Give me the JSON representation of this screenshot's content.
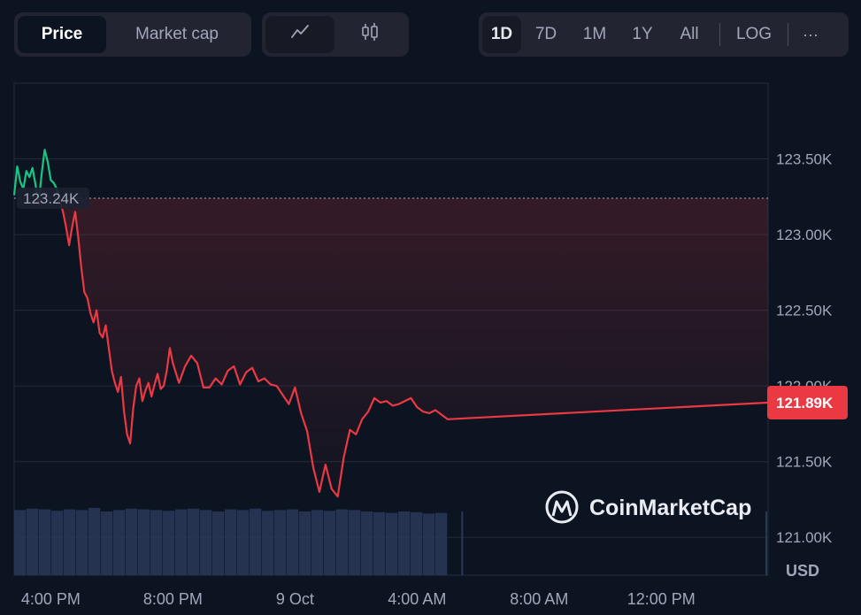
{
  "toolbar": {
    "tabs": [
      {
        "label": "Price",
        "active": true
      },
      {
        "label": "Market cap",
        "active": false
      }
    ],
    "chart_types": [
      {
        "icon": "line-chart-icon",
        "active": true
      },
      {
        "icon": "candlestick-icon",
        "active": false
      }
    ],
    "ranges": [
      {
        "label": "1D",
        "active": true
      },
      {
        "label": "7D",
        "active": false
      },
      {
        "label": "1M",
        "active": false
      },
      {
        "label": "1Y",
        "active": false
      },
      {
        "label": "All",
        "active": false
      }
    ],
    "log_label": "LOG",
    "more_label": "···"
  },
  "watermark": {
    "text": "CoinMarketCap"
  },
  "colors": {
    "background": "#0d1421",
    "up": "#16c784",
    "down": "#ea3943",
    "grid": "#222a3a",
    "volume": "#2a3858"
  },
  "chart_data": {
    "type": "line",
    "currency_label": "USD",
    "y_ticks": [
      "123.50K",
      "123.00K",
      "122.50K",
      "122.00K",
      "121.50K",
      "121.00K"
    ],
    "y_tick_values": [
      123500,
      123000,
      122500,
      122000,
      121500,
      121000
    ],
    "ylim": [
      120750,
      124000
    ],
    "x_ticks": [
      "4:00 PM",
      "8:00 PM",
      "9 Oct",
      "4:00 AM",
      "8:00 AM",
      "12:00 PM"
    ],
    "x_tick_hours": [
      0,
      4,
      8,
      12,
      16,
      20
    ],
    "xlim_hours": [
      -1.2,
      23.5
    ],
    "open_price_label": "123.24K",
    "open_price": 123240,
    "last_price_label": "121.89K",
    "last_price": 121890,
    "series": [
      {
        "x_hours": [
          -1.2,
          -1.1,
          -1.0,
          -0.9,
          -0.8,
          -0.7,
          -0.6,
          -0.5,
          -0.4,
          -0.3,
          -0.2,
          -0.1,
          0.0,
          0.1,
          0.2,
          0.3,
          0.4,
          0.5,
          0.6,
          0.7,
          0.8,
          0.9,
          1.0,
          1.1,
          1.2,
          1.3,
          1.4,
          1.5,
          1.6,
          1.7,
          1.8,
          1.9,
          2.0,
          2.1,
          2.2,
          2.3,
          2.4,
          2.5,
          2.6,
          2.7,
          2.8,
          2.9,
          3.0,
          3.1,
          3.2,
          3.3,
          3.4,
          3.5,
          3.6,
          3.7,
          3.8,
          3.9,
          4.0,
          4.2,
          4.4,
          4.6,
          4.8,
          5.0,
          5.2,
          5.4,
          5.6,
          5.8,
          6.0,
          6.2,
          6.4,
          6.6,
          6.8,
          7.0,
          7.2,
          7.4,
          7.6,
          7.8,
          8.0,
          8.2,
          8.4,
          8.6,
          8.8,
          9.0,
          9.2,
          9.4,
          9.6,
          9.8,
          10.0,
          10.2,
          10.4,
          10.6,
          10.8,
          11.0,
          11.2,
          11.4,
          11.6,
          11.8,
          12.0,
          12.2,
          12.4,
          12.6,
          12.8,
          13.0,
          23.5
        ],
        "values": [
          123260,
          123450,
          123350,
          123300,
          123420,
          123380,
          123440,
          123330,
          123200,
          123400,
          123560,
          123480,
          123360,
          123340,
          123300,
          123220,
          123150,
          123050,
          122930,
          123050,
          123150,
          122980,
          122780,
          122620,
          122580,
          122480,
          122420,
          122500,
          122350,
          122320,
          122400,
          122250,
          122100,
          122020,
          121960,
          122060,
          121830,
          121680,
          121620,
          121850,
          122000,
          122050,
          121900,
          121970,
          122020,
          121930,
          122010,
          122080,
          121980,
          122000,
          122100,
          122250,
          122150,
          122020,
          122130,
          122200,
          122150,
          121990,
          121990,
          122050,
          122010,
          122100,
          122130,
          122010,
          122090,
          122120,
          122030,
          122050,
          122010,
          122000,
          121940,
          121880,
          121990,
          121820,
          121700,
          121460,
          121300,
          121480,
          121320,
          121270,
          121530,
          121710,
          121680,
          121780,
          121830,
          121920,
          121890,
          121900,
          121870,
          121880,
          121900,
          121920,
          121860,
          121830,
          121820,
          121840,
          121810,
          121780,
          121890
        ]
      }
    ],
    "volume": [
      0.92,
      0.94,
      0.93,
      0.91,
      0.93,
      0.92,
      0.95,
      0.9,
      0.92,
      0.94,
      0.93,
      0.92,
      0.91,
      0.93,
      0.94,
      0.92,
      0.9,
      0.93,
      0.92,
      0.94,
      0.91,
      0.92,
      0.93,
      0.9,
      0.92,
      0.91,
      0.93,
      0.92,
      0.9,
      0.89,
      0.88,
      0.9,
      0.89,
      0.87,
      0.88
    ]
  }
}
